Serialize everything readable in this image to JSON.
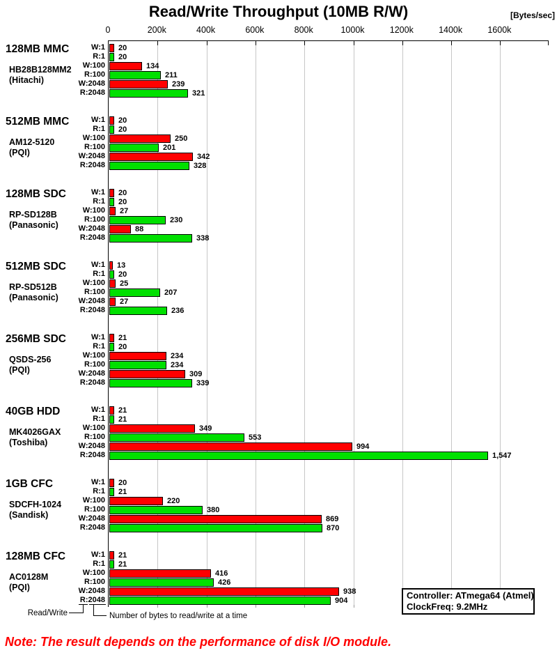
{
  "title": "Read/Write Throughput (10MB R/W)",
  "unit_label": "[Bytes/sec]",
  "note": "Note: The result depends on the performance of disk I/O module.",
  "info_box": {
    "controller": "Controller: ATmega64 (Atmel)",
    "clock": "ClockFreq: 9.2MHz"
  },
  "axis_annotation": {
    "read_write_label": "Read/Write",
    "bytes_label": "Number of bytes to read/write at a time"
  },
  "chart_data": {
    "type": "bar",
    "orientation": "horizontal",
    "title": "Read/Write Throughput (10MB R/W)",
    "xlabel_unit": "Bytes/sec",
    "x_ticks": [
      "0",
      "200k",
      "400k",
      "600k",
      "800k",
      "1000k",
      "1200k",
      "1400k",
      "1600k"
    ],
    "x_tick_values_k": [
      0,
      200,
      400,
      600,
      800,
      1000,
      1200,
      1400,
      1600
    ],
    "xlim_k": [
      0,
      1800
    ],
    "grid": true,
    "row_labels": [
      "W:1",
      "R:1",
      "W:100",
      "R:100",
      "W:2048",
      "R:2048"
    ],
    "colors": {
      "write": "#ff0000",
      "read": "#00e000",
      "grid": "#c6c6c6",
      "note": "#ff0000"
    },
    "groups": [
      {
        "name": "128MB MMC",
        "model": "HB28B128MM2",
        "maker": "(Hitachi)",
        "values_k": [
          20,
          20,
          134,
          211,
          239,
          321
        ],
        "value_labels": [
          "20",
          "20",
          "134",
          "211",
          "239",
          "321"
        ]
      },
      {
        "name": "512MB MMC",
        "model": "AM12-5120",
        "maker": "(PQI)",
        "values_k": [
          20,
          20,
          250,
          201,
          342,
          328
        ],
        "value_labels": [
          "20",
          "20",
          "250",
          "201",
          "342",
          "328"
        ]
      },
      {
        "name": "128MB SDC",
        "model": "RP-SD128B",
        "maker": "(Panasonic)",
        "values_k": [
          20,
          20,
          27,
          230,
          88,
          338
        ],
        "value_labels": [
          "20",
          "20",
          "27",
          "230",
          "88",
          "338"
        ]
      },
      {
        "name": "512MB SDC",
        "model": "RP-SD512B",
        "maker": "(Panasonic)",
        "values_k": [
          13,
          20,
          25,
          207,
          27,
          236
        ],
        "value_labels": [
          "13",
          "20",
          "25",
          "207",
          "27",
          "236"
        ]
      },
      {
        "name": "256MB SDC",
        "model": "QSDS-256",
        "maker": "(PQI)",
        "values_k": [
          21,
          20,
          234,
          234,
          309,
          339
        ],
        "value_labels": [
          "21",
          "20",
          "234",
          "234",
          "309",
          "339"
        ]
      },
      {
        "name": "40GB HDD",
        "model": "MK4026GAX",
        "maker": "(Toshiba)",
        "values_k": [
          21,
          21,
          349,
          553,
          994,
          1547
        ],
        "value_labels": [
          "21",
          "21",
          "349",
          "553",
          "994",
          "1,547"
        ]
      },
      {
        "name": "1GB CFC",
        "model": "SDCFH-1024",
        "maker": "(Sandisk)",
        "values_k": [
          20,
          21,
          220,
          380,
          869,
          870
        ],
        "value_labels": [
          "20",
          "21",
          "220",
          "380",
          "869",
          "870"
        ]
      },
      {
        "name": "128MB CFC",
        "model": "AC0128M",
        "maker": "(PQI)",
        "values_k": [
          21,
          21,
          416,
          426,
          938,
          904
        ],
        "value_labels": [
          "21",
          "21",
          "416",
          "426",
          "938",
          "904"
        ]
      }
    ]
  }
}
